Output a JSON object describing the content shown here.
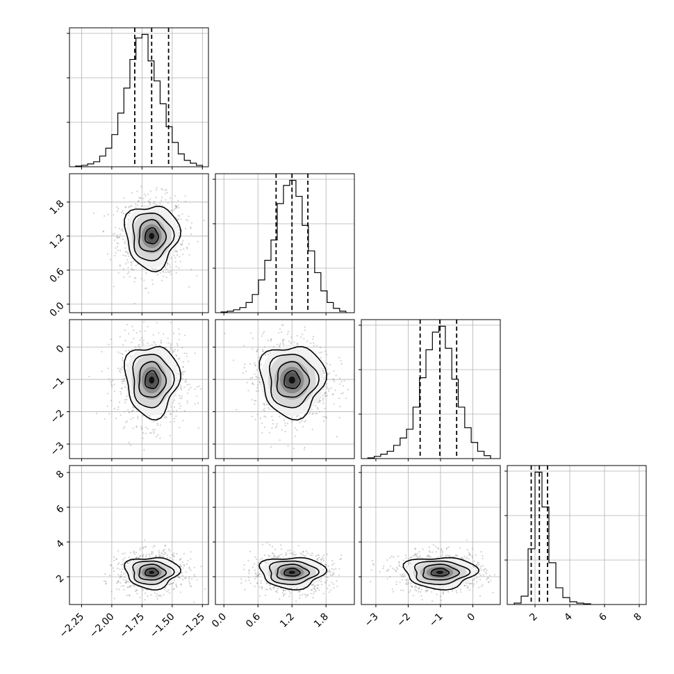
{
  "chart_data": {
    "type": "corner",
    "title": "",
    "parameters": [
      {
        "range": [
          -2.35,
          -1.2
        ],
        "ticks": [
          -2.25,
          -2.0,
          -1.75,
          -1.5,
          -1.25
        ],
        "tick_labels": [
          "−2.25",
          "−2.00",
          "−1.75",
          "−1.50",
          "−1.25"
        ],
        "mean": -1.67,
        "sd": 0.11,
        "quantiles": [
          -1.81,
          -1.67,
          -1.53
        ]
      },
      {
        "range": [
          -0.15,
          2.3
        ],
        "ticks": [
          0.0,
          0.6,
          1.2,
          1.8
        ],
        "tick_labels": [
          "0.0",
          "0.6",
          "1.2",
          "1.8"
        ],
        "mean": 1.2,
        "sd": 0.28,
        "quantiles": [
          0.92,
          1.2,
          1.48
        ]
      },
      {
        "range": [
          -3.45,
          0.85
        ],
        "ticks": [
          -3,
          -2,
          -1,
          0
        ],
        "tick_labels": [
          "−3",
          "−2",
          "−1",
          "0"
        ],
        "mean": -1.02,
        "sd": 0.55,
        "quantiles": [
          -1.63,
          -1.02,
          -0.5
        ]
      },
      {
        "range": [
          0.4,
          8.4
        ],
        "ticks": [
          2,
          4,
          6,
          8
        ],
        "tick_labels": [
          "2",
          "4",
          "6",
          "8"
        ],
        "mean": 2.25,
        "sd": 0.45,
        "quantiles": [
          1.78,
          2.25,
          2.72
        ]
      }
    ],
    "histograms": [
      {
        "param": 0,
        "bin_edges": [
          -2.3,
          -2.25,
          -2.2,
          -2.15,
          -2.1,
          -2.05,
          -2.0,
          -1.95,
          -1.9,
          -1.85,
          -1.8,
          -1.75,
          -1.7,
          -1.65,
          -1.6,
          -1.55,
          -1.5,
          -1.45,
          -1.4,
          -1.35,
          -1.3,
          -1.25
        ],
        "counts": [
          1,
          2,
          4,
          7,
          15,
          26,
          45,
          75,
          110,
          150,
          180,
          185,
          148,
          120,
          88,
          56,
          34,
          18,
          9,
          5,
          2
        ]
      },
      {
        "param": 1,
        "bin_edges": [
          -0.05,
          0.06,
          0.17,
          0.28,
          0.39,
          0.5,
          0.61,
          0.72,
          0.83,
          0.94,
          1.05,
          1.16,
          1.27,
          1.38,
          1.49,
          1.6,
          1.71,
          1.82,
          1.93,
          2.04,
          2.15
        ],
        "counts": [
          1,
          2,
          4,
          7,
          14,
          25,
          45,
          72,
          100,
          150,
          175,
          182,
          160,
          120,
          85,
          55,
          30,
          14,
          6,
          2
        ]
      },
      {
        "param": 2,
        "bin_edges": [
          -3.25,
          -3.05,
          -2.85,
          -2.65,
          -2.45,
          -2.25,
          -2.05,
          -1.85,
          -1.65,
          -1.45,
          -1.25,
          -1.05,
          -0.85,
          -0.65,
          -0.45,
          -0.25,
          -0.05,
          0.15,
          0.35,
          0.55
        ],
        "counts": [
          1,
          3,
          6,
          10,
          18,
          28,
          40,
          70,
          110,
          148,
          172,
          180,
          150,
          108,
          70,
          42,
          22,
          10,
          4
        ]
      },
      {
        "param": 3,
        "bin_edges": [
          0.8,
          1.2,
          1.6,
          2.0,
          2.4,
          2.8,
          3.2,
          3.6,
          4.0,
          4.4,
          4.8,
          5.2
        ],
        "counts": [
          2,
          12,
          80,
          190,
          140,
          60,
          24,
          10,
          4,
          2,
          1
        ]
      }
    ],
    "pairs": [
      {
        "x": 0,
        "y": 1
      },
      {
        "x": 0,
        "y": 2
      },
      {
        "x": 1,
        "y": 2
      },
      {
        "x": 0,
        "y": 3
      },
      {
        "x": 1,
        "y": 3
      },
      {
        "x": 2,
        "y": 3
      }
    ],
    "contour_levels_sigma": [
      0.5,
      1.0,
      1.5,
      2.0
    ],
    "grid": true
  }
}
